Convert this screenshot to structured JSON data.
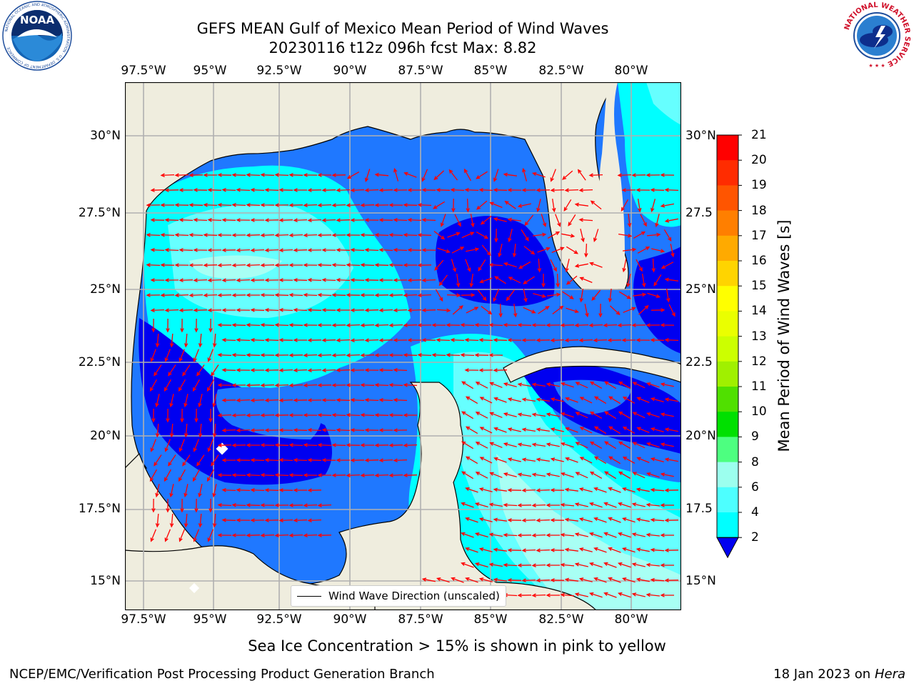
{
  "header": {
    "title_line1": "GEFS MEAN Gulf of Mexico Mean Period of Wind Waves",
    "title_line2": "20230116 t12z 096h fcst   Max: 8.82"
  },
  "logos": {
    "left": "NOAA",
    "left_ring": "NATIONAL OCEANIC AND ATMOSPHERIC ADMINISTRATION · U.S. DEPARTMENT OF COMMERCE",
    "right_ring": "NATIONAL WEATHER SERVICE"
  },
  "map": {
    "lon_labels": [
      "97.5°W",
      "95°W",
      "92.5°W",
      "90°W",
      "87.5°W",
      "85°W",
      "82.5°W",
      "80°W"
    ],
    "lat_labels": [
      "30°N",
      "27.5°N",
      "25°N",
      "22.5°N",
      "20°N",
      "17.5°N",
      "15°N"
    ],
    "lat_labels_right": [
      "30°N",
      "27.5",
      "25°N",
      "22.5",
      "20°N",
      "17.5",
      "15°N"
    ],
    "legend_label": "Wind Wave Direction (unscaled)",
    "vector_color": "#ff0000",
    "land_color": "#efedde",
    "colors": {
      "lvl2": "#0000f0",
      "lvl3": "#1f78ff",
      "lvl4": "#00ffff",
      "lvl5": "#66ffff",
      "lvl6": "#a8fff4"
    }
  },
  "colorbar": {
    "label": "Mean Period of Wind Waves [s]",
    "ticks": [
      "21",
      "20",
      "19",
      "18",
      "17",
      "16",
      "15",
      "14",
      "13",
      "12",
      "11",
      "10",
      "9",
      "8",
      "6",
      "4",
      "2"
    ],
    "colors": [
      "#ff0000",
      "#ff2c00",
      "#ff5500",
      "#ff7f00",
      "#ffaa00",
      "#ffd400",
      "#ffff00",
      "#eaff00",
      "#ccff00",
      "#a0f000",
      "#50e000",
      "#00e000",
      "#4dff80",
      "#9cffee",
      "#4dffff",
      "#00ffff",
      "#1e78ff",
      "#0000f0"
    ]
  },
  "footer": {
    "center": "Sea Ice Concentration > 15% is shown in pink to yellow",
    "left": "NCEP/EMC/Verification Post Processing Product Generation Branch",
    "right_prefix": "18 Jan 2023 on ",
    "right_italic": "Hera"
  }
}
